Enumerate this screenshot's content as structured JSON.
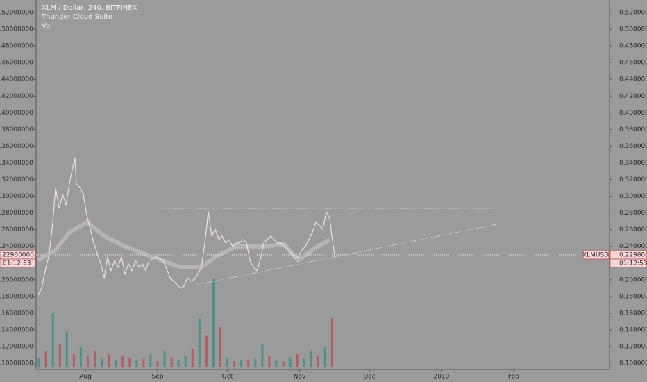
{
  "chart_data": {
    "type": "line",
    "legend": [
      "XLM / Dollar, 240, BITFINEX",
      "Thunder Cloud Suite",
      "Vol"
    ],
    "xlim": [
      9.8,
      256.2
    ],
    "xticks": [
      {
        "value": 31,
        "label": "Aug"
      },
      {
        "value": 62,
        "label": "Sep"
      },
      {
        "value": 92,
        "label": "Oct"
      },
      {
        "value": 123,
        "label": "Nov"
      },
      {
        "value": 153,
        "label": "Dec"
      },
      {
        "value": 184,
        "label": "2019"
      },
      {
        "value": 215,
        "label": "Feb"
      }
    ],
    "ylim": [
      0.0925,
      0.535
    ],
    "yticks": [
      {
        "value": 0.1,
        "label": "0.10000000"
      },
      {
        "value": 0.12,
        "label": "0.12000000"
      },
      {
        "value": 0.14,
        "label": "0.14000000"
      },
      {
        "value": 0.16,
        "label": "0.16000000"
      },
      {
        "value": 0.18,
        "label": "0.18000000"
      },
      {
        "value": 0.2,
        "label": "0.20000000"
      },
      {
        "value": 0.22,
        "label": "0.22000000"
      },
      {
        "value": 0.24,
        "label": "0.24000000"
      },
      {
        "value": 0.26,
        "label": "0.26000000"
      },
      {
        "value": 0.28,
        "label": "0.28000000"
      },
      {
        "value": 0.3,
        "label": "0.30000000"
      },
      {
        "value": 0.32,
        "label": "0.32000000"
      },
      {
        "value": 0.34,
        "label": "0.34000000"
      },
      {
        "value": 0.36,
        "label": "0.36000000"
      },
      {
        "value": 0.38,
        "label": "0.38000000"
      },
      {
        "value": 0.4,
        "label": "0.40000000"
      },
      {
        "value": 0.42,
        "label": "0.42000000"
      },
      {
        "value": 0.44,
        "label": "0.44000000"
      },
      {
        "value": 0.46,
        "label": "0.46000000"
      },
      {
        "value": 0.48,
        "label": "0.48000000"
      },
      {
        "value": 0.5,
        "label": "0.50000000"
      },
      {
        "value": 0.52,
        "label": "0.52000000"
      }
    ],
    "series": [
      {
        "name": "XLM / Dollar, 240, BITFINEX",
        "color": "#f3e7e7",
        "x": [
          10.7,
          12.2,
          13.7,
          15.2,
          16.7,
          18.2,
          19.7,
          21.2,
          22.6,
          24.1,
          25.6,
          26.5,
          27.1,
          28.6,
          30.1,
          31.6,
          33.1,
          34.6,
          36.1,
          37.6,
          39.1,
          40.5,
          42.0,
          43.5,
          45.0,
          46.5,
          48.0,
          49.5,
          51.0,
          52.5,
          54.0,
          55.5,
          56.9,
          58.4,
          61.4,
          64.4,
          67.4,
          68.9,
          70.4,
          71.9,
          73.3,
          74.8,
          76.3,
          77.8,
          79.3,
          80.8,
          82.3,
          83.8,
          85.3,
          86.8,
          88.3,
          89.7,
          91.2,
          92.7,
          94.2,
          95.7,
          97.2,
          98.7,
          100.2,
          101.7,
          103.2,
          104.7,
          106.1,
          107.6,
          109.1,
          110.6,
          112.1,
          113.6,
          115.1,
          116.6,
          118.1,
          119.6,
          121.1,
          122.5,
          124.0,
          125.5,
          127.0,
          128.5,
          130.0,
          131.5,
          133.0,
          134.5,
          136.0,
          136.9,
          138.1
        ],
        "values": [
          0.1815,
          0.1898,
          0.2107,
          0.2273,
          0.2606,
          0.3105,
          0.2855,
          0.3022,
          0.2897,
          0.3147,
          0.3355,
          0.3454,
          0.3147,
          0.3105,
          0.3022,
          0.2772,
          0.2606,
          0.2439,
          0.2315,
          0.219,
          0.2023,
          0.2273,
          0.2107,
          0.2231,
          0.2148,
          0.2273,
          0.2065,
          0.219,
          0.2107,
          0.2231,
          0.2148,
          0.219,
          0.2107,
          0.2231,
          0.2273,
          0.2231,
          0.2023,
          0.1982,
          0.194,
          0.1898,
          0.1924,
          0.2023,
          0.1982,
          0.2007,
          0.2065,
          0.2148,
          0.2439,
          0.2814,
          0.2523,
          0.2606,
          0.2481,
          0.2523,
          0.2439,
          0.2481,
          0.2398,
          0.2439,
          0.2439,
          0.2481,
          0.2439,
          0.2231,
          0.2148,
          0.2107,
          0.2231,
          0.2439,
          0.2481,
          0.2523,
          0.2481,
          0.2439,
          0.2439,
          0.2398,
          0.2356,
          0.2315,
          0.2256,
          0.2273,
          0.2356,
          0.2398,
          0.2481,
          0.2564,
          0.2689,
          0.2647,
          0.2606,
          0.2814,
          0.2731,
          0.2523,
          0.2298
        ]
      },
      {
        "name": "Thunder Cloud Suite",
        "color": "#c9c4c4",
        "x": [
          10.7,
          18.2,
          24.1,
          31.6,
          39.1,
          48.0,
          59.9,
          71.9,
          80.8,
          86.8,
          95.7,
          107.6,
          116.6,
          122.5,
          128.5,
          136.0
        ],
        "values": [
          0.2231,
          0.2356,
          0.2564,
          0.2689,
          0.2523,
          0.2398,
          0.2273,
          0.2148,
          0.2148,
          0.2273,
          0.2398,
          0.2398,
          0.2423,
          0.2231,
          0.2356,
          0.2481
        ]
      }
    ],
    "volume": {
      "name": "Vol",
      "ylim": [
        0,
        100
      ],
      "x": [
        11,
        14,
        17,
        20,
        23,
        26,
        29,
        32,
        35,
        38,
        41,
        44,
        47,
        50,
        53,
        56,
        59,
        62,
        65,
        68,
        71,
        74,
        77,
        80,
        83,
        86,
        89,
        92,
        95,
        98,
        101,
        104,
        107,
        110,
        113,
        116,
        119,
        122,
        125,
        128,
        131,
        134,
        137
      ],
      "values": [
        10,
        18,
        60,
        25,
        40,
        15,
        22,
        12,
        18,
        9,
        14,
        8,
        12,
        10,
        7,
        9,
        14,
        6,
        18,
        10,
        8,
        12,
        20,
        55,
        35,
        100,
        45,
        10,
        6,
        8,
        7,
        9,
        25,
        12,
        8,
        6,
        10,
        14,
        9,
        18,
        12,
        22,
        55
      ],
      "colors": [
        "#3e8f86",
        "#b5525a",
        "#3e8f86",
        "#b5525a",
        "#3e8f86",
        "#b5525a",
        "#3e8f86",
        "#b5525a",
        "#b5525a",
        "#3e8f86",
        "#b5525a",
        "#3e8f86",
        "#b5525a",
        "#b5525a",
        "#3e8f86",
        "#b5525a",
        "#3e8f86",
        "#b5525a",
        "#3e8f86",
        "#b5525a",
        "#3e8f86",
        "#3e8f86",
        "#b5525a",
        "#3e8f86",
        "#b5525a",
        "#3e8f86",
        "#b5525a",
        "#3e8f86",
        "#b5525a",
        "#3e8f86",
        "#b5525a",
        "#3e8f86",
        "#3e8f86",
        "#b5525a",
        "#3e8f86",
        "#b5525a",
        "#3e8f86",
        "#b5525a",
        "#3e8f86",
        "#3e8f86",
        "#b5525a",
        "#3e8f86",
        "#b5525a"
      ]
    },
    "drawings": [
      {
        "x": [
          63.9,
          206.8
        ],
        "values": [
          0.2855,
          0.2855
        ]
      },
      {
        "x": [
          78.7,
          207.8
        ],
        "values": [
          0.194,
          0.2664
        ]
      }
    ],
    "last_price": {
      "value": 0.2298,
      "label": "0.22980000",
      "countdown": "01:12:53",
      "symbol": "XLMUSD"
    }
  }
}
